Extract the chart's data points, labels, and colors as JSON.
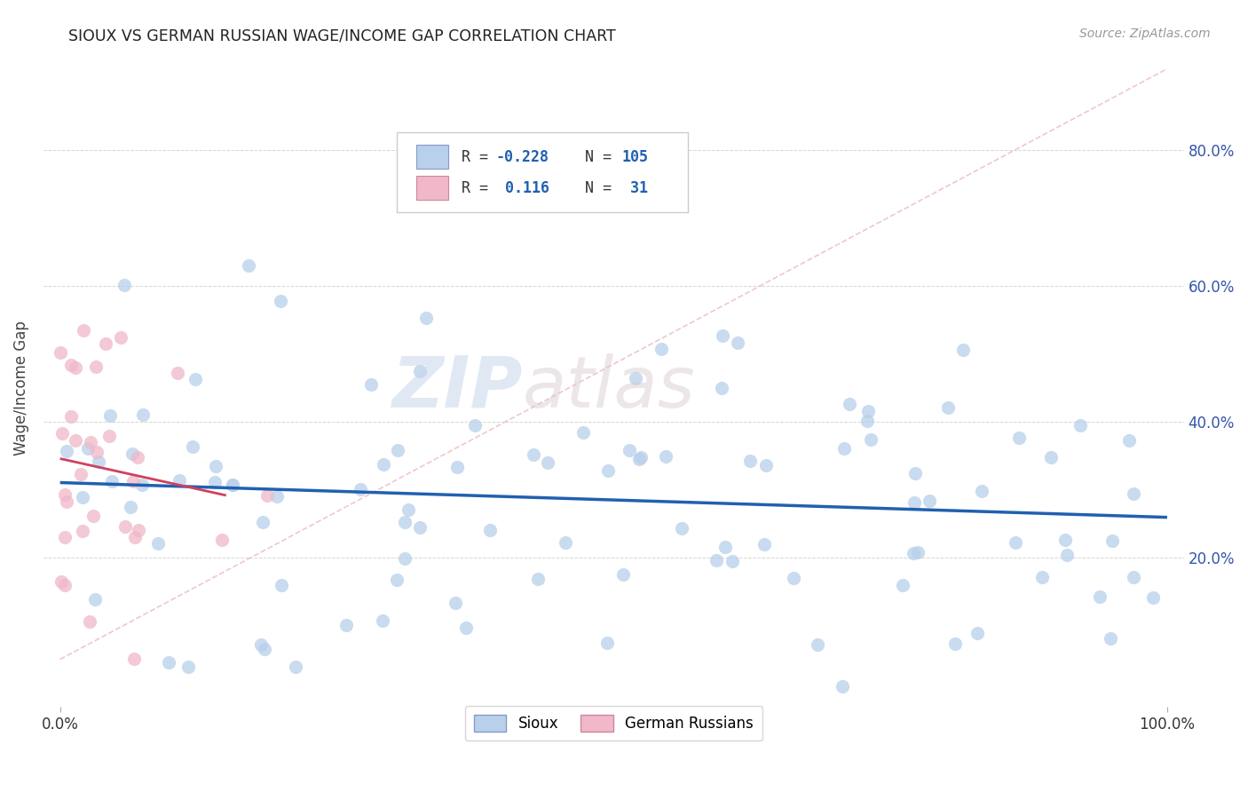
{
  "title": "SIOUX VS GERMAN RUSSIAN WAGE/INCOME GAP CORRELATION CHART",
  "source": "Source: ZipAtlas.com",
  "ylabel": "Wage/Income Gap",
  "sioux_R": -0.228,
  "sioux_N": 105,
  "german_R": 0.116,
  "german_N": 31,
  "sioux_color": "#b8d0ea",
  "sioux_line_color": "#2060b0",
  "german_color": "#f0b8c8",
  "german_line_color": "#d04060",
  "background_color": "#ffffff",
  "grid_color": "#cccccc",
  "ytick_labels": [
    "20.0%",
    "40.0%",
    "60.0%",
    "80.0%"
  ],
  "ytick_values": [
    0.2,
    0.4,
    0.6,
    0.8
  ],
  "watermark_zip": "ZIP",
  "watermark_atlas": "atlas",
  "legend_labels": [
    "Sioux",
    "German Russians"
  ],
  "legend_R_color": "#2060b0",
  "legend_text_color": "#333333",
  "source_color": "#999999",
  "title_color": "#222222"
}
